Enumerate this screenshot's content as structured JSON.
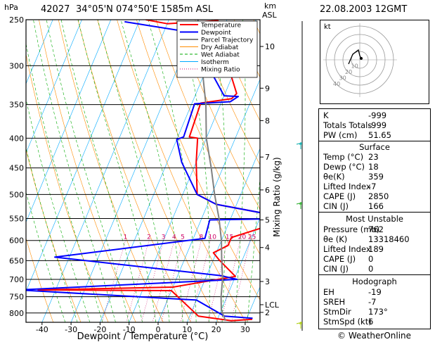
{
  "header": {
    "station": "42027",
    "location": "34°05'N  074°50'E  1585m  ASL",
    "datetime": "22.08.2003  12GMT",
    "left_unit": "hPa",
    "right_unit_1": "km",
    "right_unit_2": "ASL"
  },
  "chart_data": {
    "type": "line",
    "xlabel": "Dewpoint / Temperature (°C)",
    "ylabel_right": "Mixing Ratio (g/kg)",
    "x_ticks": [
      -40,
      -30,
      -20,
      -10,
      0,
      10,
      20,
      30
    ],
    "pressure_levels": [
      250,
      300,
      350,
      400,
      450,
      500,
      550,
      600,
      650,
      700,
      750,
      800
    ],
    "height_km_labels": [
      {
        "km": "10",
        "p": 278
      },
      {
        "km": "9",
        "p": 328
      },
      {
        "km": "8",
        "p": 373
      },
      {
        "km": "7",
        "p": 431
      },
      {
        "km": "6",
        "p": 491
      },
      {
        "km": "5",
        "p": 553
      },
      {
        "km": "4",
        "p": 617
      },
      {
        "km": "3",
        "p": 706
      },
      {
        "km": "LCL",
        "p": 774
      },
      {
        "km": "2",
        "p": 798
      }
    ],
    "mixing_ratio_labels": [
      "1",
      "2",
      "3",
      "4",
      "5",
      "8",
      "10",
      "15",
      "20",
      "25"
    ],
    "legend": [
      "Temperature",
      "Dewpoint",
      "Parcel Trajectory",
      "Dry Adiabat",
      "Wet Adiabat",
      "Isotherm",
      "Mixing Ratio"
    ],
    "colors": {
      "temperature": "#ff0000",
      "dewpoint": "#0000ff",
      "parcel": "#808080",
      "dry_adiabat": "#ff8c00",
      "wet_adiabat": "#00aa00",
      "isotherm": "#00aaff",
      "mixing_ratio": "#cc0066"
    },
    "series": [
      {
        "name": "Temperature",
        "points": [
          [
            -48,
            250
          ],
          [
            -40,
            254
          ],
          [
            -23,
            251
          ],
          [
            -17,
            270
          ],
          [
            -13,
            300
          ],
          [
            -6,
            335
          ],
          [
            -7,
            342
          ],
          [
            -17,
            348
          ],
          [
            -16,
            398
          ],
          [
            -13,
            400
          ],
          [
            -10,
            440
          ],
          [
            -5,
            500
          ],
          [
            3,
            520
          ],
          [
            31,
            550
          ],
          [
            13,
            593
          ],
          [
            13,
            612
          ],
          [
            9,
            630
          ],
          [
            12,
            648
          ],
          [
            20,
            692
          ],
          [
            0,
            722
          ],
          [
            -46,
            730
          ],
          [
            0,
            732
          ],
          [
            13,
            810
          ],
          [
            25,
            825
          ],
          [
            32,
            820
          ]
        ]
      },
      {
        "name": "Dewpoint",
        "points": [
          [
            -55,
            252
          ],
          [
            -28,
            264
          ],
          [
            -25,
            270
          ],
          [
            -20,
            300
          ],
          [
            -10,
            338
          ],
          [
            -5,
            339
          ],
          [
            -7,
            346
          ],
          [
            -19,
            349
          ],
          [
            -18,
            398
          ],
          [
            -20,
            402
          ],
          [
            -15,
            440
          ],
          [
            -5,
            500
          ],
          [
            3,
            520
          ],
          [
            31,
            550
          ],
          [
            3,
            553
          ],
          [
            4,
            595
          ],
          [
            -45,
            641
          ],
          [
            15,
            690
          ],
          [
            21,
            700
          ],
          [
            -53,
            730
          ],
          [
            10,
            760
          ],
          [
            22,
            810
          ],
          [
            32,
            817
          ]
        ]
      },
      {
        "name": "Parcel Trajectory",
        "points": [
          [
            -30,
            250
          ],
          [
            -22,
            300
          ],
          [
            -15,
            350
          ],
          [
            -10,
            400
          ],
          [
            -4,
            450
          ],
          [
            1,
            500
          ],
          [
            6,
            550
          ],
          [
            10,
            600
          ],
          [
            13,
            650
          ],
          [
            16,
            700
          ],
          [
            18,
            750
          ],
          [
            20,
            790
          ],
          [
            23,
            825
          ]
        ]
      }
    ],
    "hodograph": {
      "label": "kt",
      "rings": [
        "10",
        "20",
        "30",
        "40"
      ]
    }
  },
  "indices": [
    {
      "label": "K",
      "value": "-999"
    },
    {
      "label": "Totals Totals",
      "value": "-999"
    },
    {
      "label": "PW (cm)",
      "value": "51.65"
    }
  ],
  "surface": {
    "title": "Surface",
    "rows": [
      {
        "label": "Temp (°C)",
        "value": "23"
      },
      {
        "label": "Dewp (°C)",
        "value": "18"
      },
      {
        "label": "θe(K)",
        "value": "359"
      },
      {
        "label": "Lifted Index",
        "value": "-7"
      },
      {
        "label": "CAPE (J)",
        "value": "2850"
      },
      {
        "label": "CIN (J)",
        "value": "166"
      }
    ]
  },
  "most_unstable": {
    "title": "Most Unstable",
    "rows": [
      {
        "label": "Pressure (mb)",
        "value": "762"
      },
      {
        "label": "θe (K)",
        "value": "13318460"
      },
      {
        "label": "Lifted Index",
        "value": "189"
      },
      {
        "label": "CAPE (J)",
        "value": "0"
      },
      {
        "label": "CIN (J)",
        "value": "0"
      }
    ]
  },
  "hodograph_table": {
    "title": "Hodograph",
    "rows": [
      {
        "label": "EH",
        "value": "-19"
      },
      {
        "label": "SREH",
        "value": "-7"
      },
      {
        "label": "StmDir",
        "value": "173°"
      },
      {
        "label": "StmSpd (kt)",
        "value": "6"
      }
    ]
  },
  "footer": {
    "copyright": "© WeatherOnline"
  }
}
